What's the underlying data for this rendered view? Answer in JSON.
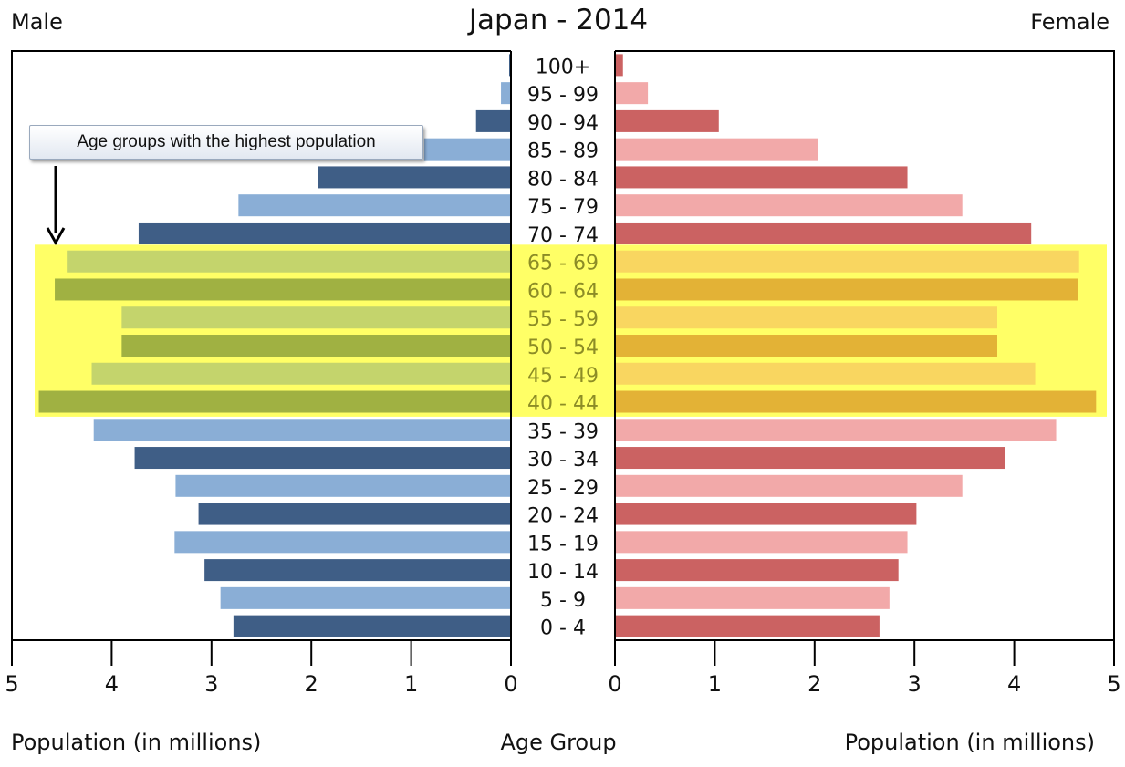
{
  "chart_data": {
    "type": "bar",
    "title": "Japan - 2014",
    "left_label": "Male",
    "right_label": "Female",
    "xlabel_left": "Population (in millions)",
    "xlabel_center": "Age Group",
    "xlabel_right": "Population (in millions)",
    "xlim": [
      0,
      5
    ],
    "x_ticks_left": [
      "5",
      "4",
      "3",
      "2",
      "1",
      "0"
    ],
    "x_ticks_right": [
      "0",
      "1",
      "2",
      "3",
      "4",
      "5"
    ],
    "categories": [
      "100+",
      "95 - 99",
      "90 - 94",
      "85 - 89",
      "80 - 84",
      "75 - 79",
      "70 - 74",
      "65 - 69",
      "60 - 64",
      "55 - 59",
      "50 - 54",
      "45 - 49",
      "40 - 44",
      "35 - 39",
      "30 - 34",
      "25 - 29",
      "20 - 24",
      "15 - 19",
      "10 - 14",
      "5 - 9",
      "0 - 4"
    ],
    "series": [
      {
        "name": "Male",
        "values": [
          0.01,
          0.1,
          0.35,
          0.87,
          1.93,
          2.73,
          3.73,
          4.45,
          4.57,
          3.9,
          3.9,
          4.2,
          4.73,
          4.18,
          3.77,
          3.36,
          3.13,
          3.37,
          3.07,
          2.91,
          2.78
        ]
      },
      {
        "name": "Female",
        "values": [
          0.08,
          0.33,
          1.04,
          2.03,
          2.93,
          3.48,
          4.17,
          4.65,
          4.64,
          3.83,
          3.83,
          4.21,
          4.82,
          4.42,
          3.91,
          3.48,
          3.02,
          2.93,
          2.84,
          2.75,
          2.65
        ]
      }
    ],
    "highlight_groups": [
      "65 - 69",
      "60 - 64",
      "55 - 59",
      "50 - 54",
      "45 - 49",
      "40 - 44"
    ],
    "annotation": "Age groups with the highest population",
    "colors": {
      "male_dark": "#3f5e86",
      "male_light": "#8aaed6",
      "female_dark": "#cb6262",
      "female_light": "#f2a9a9",
      "male_hi_dark": "#a0b142",
      "male_hi_light": "#c4d46c",
      "female_hi_dark": "#e3b236",
      "female_hi_light": "#f9d660",
      "highlight": "#ffff66"
    }
  }
}
